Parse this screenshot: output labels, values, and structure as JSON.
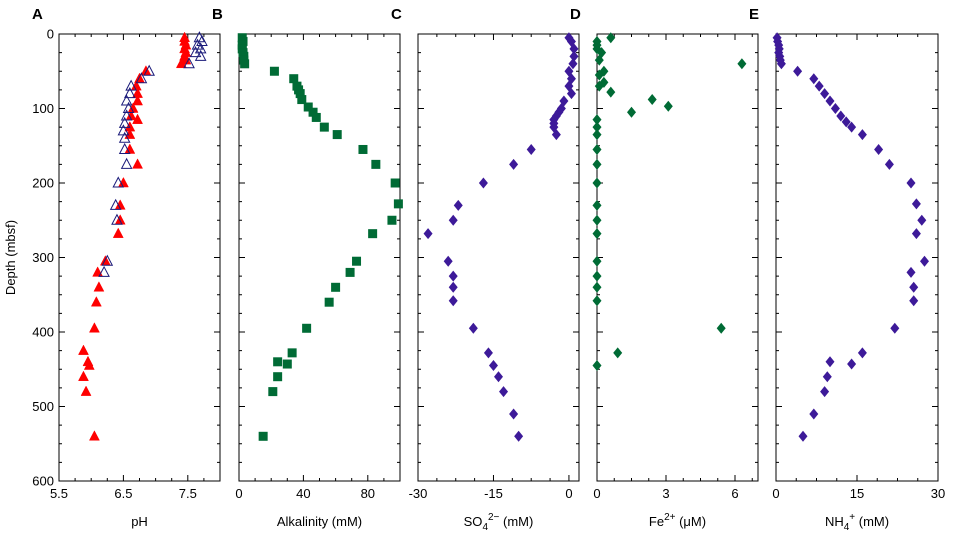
{
  "chart_data": {
    "y_axis": {
      "label": "Depth (mbsf)",
      "range": [
        0,
        600
      ],
      "ticks": [
        0,
        100,
        200,
        300,
        400,
        500,
        600
      ]
    },
    "panels": [
      {
        "id": "A",
        "letter": "A",
        "type": "scatter",
        "xlabel": "pH",
        "xlim": [
          5.5,
          8.0
        ],
        "xticks": [
          5.5,
          6.5,
          7.5
        ],
        "xtick_labels": [
          "5.5",
          "6.5",
          "7.5"
        ],
        "series": [
          {
            "marker": "filled-triangle",
            "color": "#ff0000",
            "points": [
              [
                7.45,
                5
              ],
              [
                7.45,
                10
              ],
              [
                7.47,
                15
              ],
              [
                7.45,
                20
              ],
              [
                7.47,
                25
              ],
              [
                7.45,
                30
              ],
              [
                7.47,
                35
              ],
              [
                7.4,
                40
              ],
              [
                6.85,
                50
              ],
              [
                6.75,
                60
              ],
              [
                6.7,
                70
              ],
              [
                6.72,
                80
              ],
              [
                6.72,
                90
              ],
              [
                6.65,
                100
              ],
              [
                6.62,
                110
              ],
              [
                6.72,
                115
              ],
              [
                6.6,
                125
              ],
              [
                6.6,
                135
              ],
              [
                6.6,
                155
              ],
              [
                6.72,
                175
              ],
              [
                6.5,
                200
              ],
              [
                6.45,
                230
              ],
              [
                6.45,
                250
              ],
              [
                6.42,
                268
              ],
              [
                6.22,
                305
              ],
              [
                6.1,
                320
              ],
              [
                6.12,
                340
              ],
              [
                6.08,
                360
              ],
              [
                6.05,
                395
              ],
              [
                5.88,
                425
              ],
              [
                5.95,
                440
              ],
              [
                5.97,
                445
              ],
              [
                5.88,
                460
              ],
              [
                5.92,
                480
              ],
              [
                6.05,
                540
              ]
            ]
          },
          {
            "marker": "open-triangle",
            "color": "#1a1a7a",
            "points": [
              [
                7.68,
                5
              ],
              [
                7.72,
                10
              ],
              [
                7.65,
                15
              ],
              [
                7.7,
                20
              ],
              [
                7.62,
                25
              ],
              [
                7.7,
                30
              ],
              [
                7.52,
                40
              ],
              [
                6.9,
                50
              ],
              [
                6.78,
                60
              ],
              [
                6.62,
                70
              ],
              [
                6.6,
                80
              ],
              [
                6.55,
                90
              ],
              [
                6.58,
                100
              ],
              [
                6.55,
                110
              ],
              [
                6.52,
                120
              ],
              [
                6.5,
                130
              ],
              [
                6.52,
                140
              ],
              [
                6.52,
                155
              ],
              [
                6.55,
                175
              ],
              [
                6.42,
                200
              ],
              [
                6.38,
                230
              ],
              [
                6.4,
                250
              ],
              [
                6.25,
                305
              ],
              [
                6.2,
                320
              ]
            ]
          }
        ]
      },
      {
        "id": "B",
        "letter": "B",
        "type": "scatter",
        "xlabel": "Alkalinity (mM)",
        "xlim": [
          0,
          100
        ],
        "xticks": [
          0,
          40,
          80
        ],
        "xtick_labels": [
          "0",
          "40",
          "80"
        ],
        "series": [
          {
            "marker": "filled-square",
            "color": "#006b35",
            "points": [
              [
                2,
                5
              ],
              [
                2.5,
                10
              ],
              [
                2,
                15
              ],
              [
                2,
                20
              ],
              [
                2.5,
                25
              ],
              [
                3,
                30
              ],
              [
                3,
                35
              ],
              [
                3.5,
                40
              ],
              [
                22,
                50
              ],
              [
                34,
                60
              ],
              [
                36,
                70
              ],
              [
                37,
                75
              ],
              [
                38,
                80
              ],
              [
                39,
                88
              ],
              [
                43,
                98
              ],
              [
                46,
                105
              ],
              [
                48,
                112
              ],
              [
                53,
                125
              ],
              [
                61,
                135
              ],
              [
                77,
                155
              ],
              [
                85,
                175
              ],
              [
                97,
                200
              ],
              [
                99,
                228
              ],
              [
                95,
                250
              ],
              [
                83,
                268
              ],
              [
                73,
                305
              ],
              [
                69,
                320
              ],
              [
                60,
                340
              ],
              [
                56,
                360
              ],
              [
                42,
                395
              ],
              [
                33,
                428
              ],
              [
                24,
                440
              ],
              [
                30,
                443
              ],
              [
                24,
                460
              ],
              [
                21,
                480
              ],
              [
                15,
                540
              ]
            ]
          }
        ]
      },
      {
        "id": "C",
        "letter": "C",
        "type": "scatter",
        "xlabel_main": "SO",
        "xlabel_sub": "4",
        "xlabel_sup": "2−",
        "xlabel_unit": " (mM)",
        "xlim": [
          -30,
          2
        ],
        "xticks": [
          -30,
          -15,
          0
        ],
        "xtick_labels": [
          "-30",
          "-15",
          "0"
        ],
        "series": [
          {
            "marker": "filled-diamond",
            "color": "#3d1a99",
            "points": [
              [
                0,
                5
              ],
              [
                0.5,
                10
              ],
              [
                1,
                20
              ],
              [
                1,
                30
              ],
              [
                0.8,
                40
              ],
              [
                0,
                50
              ],
              [
                0.5,
                60
              ],
              [
                0,
                70
              ],
              [
                0.5,
                80
              ],
              [
                -1,
                90
              ],
              [
                -1.5,
                100
              ],
              [
                -2,
                105
              ],
              [
                -2.5,
                110
              ],
              [
                -3,
                115
              ],
              [
                -3,
                120
              ],
              [
                -3,
                125
              ],
              [
                -2.5,
                135
              ],
              [
                -7.5,
                155
              ],
              [
                -11,
                175
              ],
              [
                -17,
                200
              ],
              [
                -22,
                230
              ],
              [
                -23,
                250
              ],
              [
                -28,
                268
              ],
              [
                -24,
                305
              ],
              [
                -23,
                325
              ],
              [
                -23,
                340
              ],
              [
                -23,
                358
              ],
              [
                -19,
                395
              ],
              [
                -16,
                428
              ],
              [
                -15,
                445
              ],
              [
                -14,
                460
              ],
              [
                -13,
                480
              ],
              [
                -11,
                510
              ],
              [
                -10,
                540
              ]
            ]
          }
        ]
      },
      {
        "id": "D",
        "letter": "D",
        "type": "scatter",
        "xlabel_main": "Fe",
        "xlabel_sup": "2+",
        "xlabel_unit": " (μM)",
        "xlim": [
          0,
          7
        ],
        "xticks": [
          0,
          3,
          6
        ],
        "xtick_labels": [
          "0",
          "3",
          "6"
        ],
        "series": [
          {
            "marker": "filled-diamond",
            "color": "#006b35",
            "points": [
              [
                0.6,
                5
              ],
              [
                0,
                10
              ],
              [
                0,
                15
              ],
              [
                0,
                20
              ],
              [
                0.2,
                25
              ],
              [
                0.1,
                35
              ],
              [
                6.3,
                40
              ],
              [
                0.3,
                50
              ],
              [
                0.1,
                55
              ],
              [
                0.3,
                65
              ],
              [
                0.1,
                70
              ],
              [
                0.6,
                78
              ],
              [
                2.4,
                88
              ],
              [
                3.1,
                97
              ],
              [
                1.5,
                105
              ],
              [
                0,
                115
              ],
              [
                0,
                125
              ],
              [
                0,
                135
              ],
              [
                0,
                155
              ],
              [
                0,
                175
              ],
              [
                0,
                200
              ],
              [
                0,
                230
              ],
              [
                0,
                250
              ],
              [
                0,
                268
              ],
              [
                0,
                305
              ],
              [
                0,
                325
              ],
              [
                0,
                340
              ],
              [
                0,
                358
              ],
              [
                5.4,
                395
              ],
              [
                0.9,
                428
              ],
              [
                0,
                445
              ]
            ]
          }
        ]
      },
      {
        "id": "E",
        "letter": "E",
        "type": "scatter",
        "xlabel_main": "NH",
        "xlabel_sub": "4",
        "xlabel_sup": "+",
        "xlabel_unit": " (mM)",
        "xlim": [
          0,
          30
        ],
        "xticks": [
          0,
          15,
          30
        ],
        "xtick_labels": [
          "0",
          "15",
          "30"
        ],
        "series": [
          {
            "marker": "filled-diamond",
            "color": "#3d1a99",
            "points": [
              [
                0.2,
                5
              ],
              [
                0.3,
                10
              ],
              [
                0.5,
                15
              ],
              [
                0.6,
                20
              ],
              [
                0.5,
                25
              ],
              [
                0.7,
                30
              ],
              [
                0.8,
                35
              ],
              [
                1,
                40
              ],
              [
                4,
                50
              ],
              [
                7,
                60
              ],
              [
                8,
                70
              ],
              [
                9,
                80
              ],
              [
                10,
                90
              ],
              [
                11,
                100
              ],
              [
                12,
                110
              ],
              [
                13,
                118
              ],
              [
                14,
                125
              ],
              [
                16,
                135
              ],
              [
                19,
                155
              ],
              [
                21,
                175
              ],
              [
                25,
                200
              ],
              [
                26,
                228
              ],
              [
                27,
                250
              ],
              [
                26,
                268
              ],
              [
                27.5,
                305
              ],
              [
                25,
                320
              ],
              [
                25.5,
                340
              ],
              [
                25.5,
                358
              ],
              [
                22,
                395
              ],
              [
                16,
                428
              ],
              [
                10,
                440
              ],
              [
                14,
                443
              ],
              [
                9.5,
                460
              ],
              [
                9,
                480
              ],
              [
                7,
                510
              ],
              [
                5,
                540
              ]
            ]
          }
        ]
      }
    ]
  }
}
